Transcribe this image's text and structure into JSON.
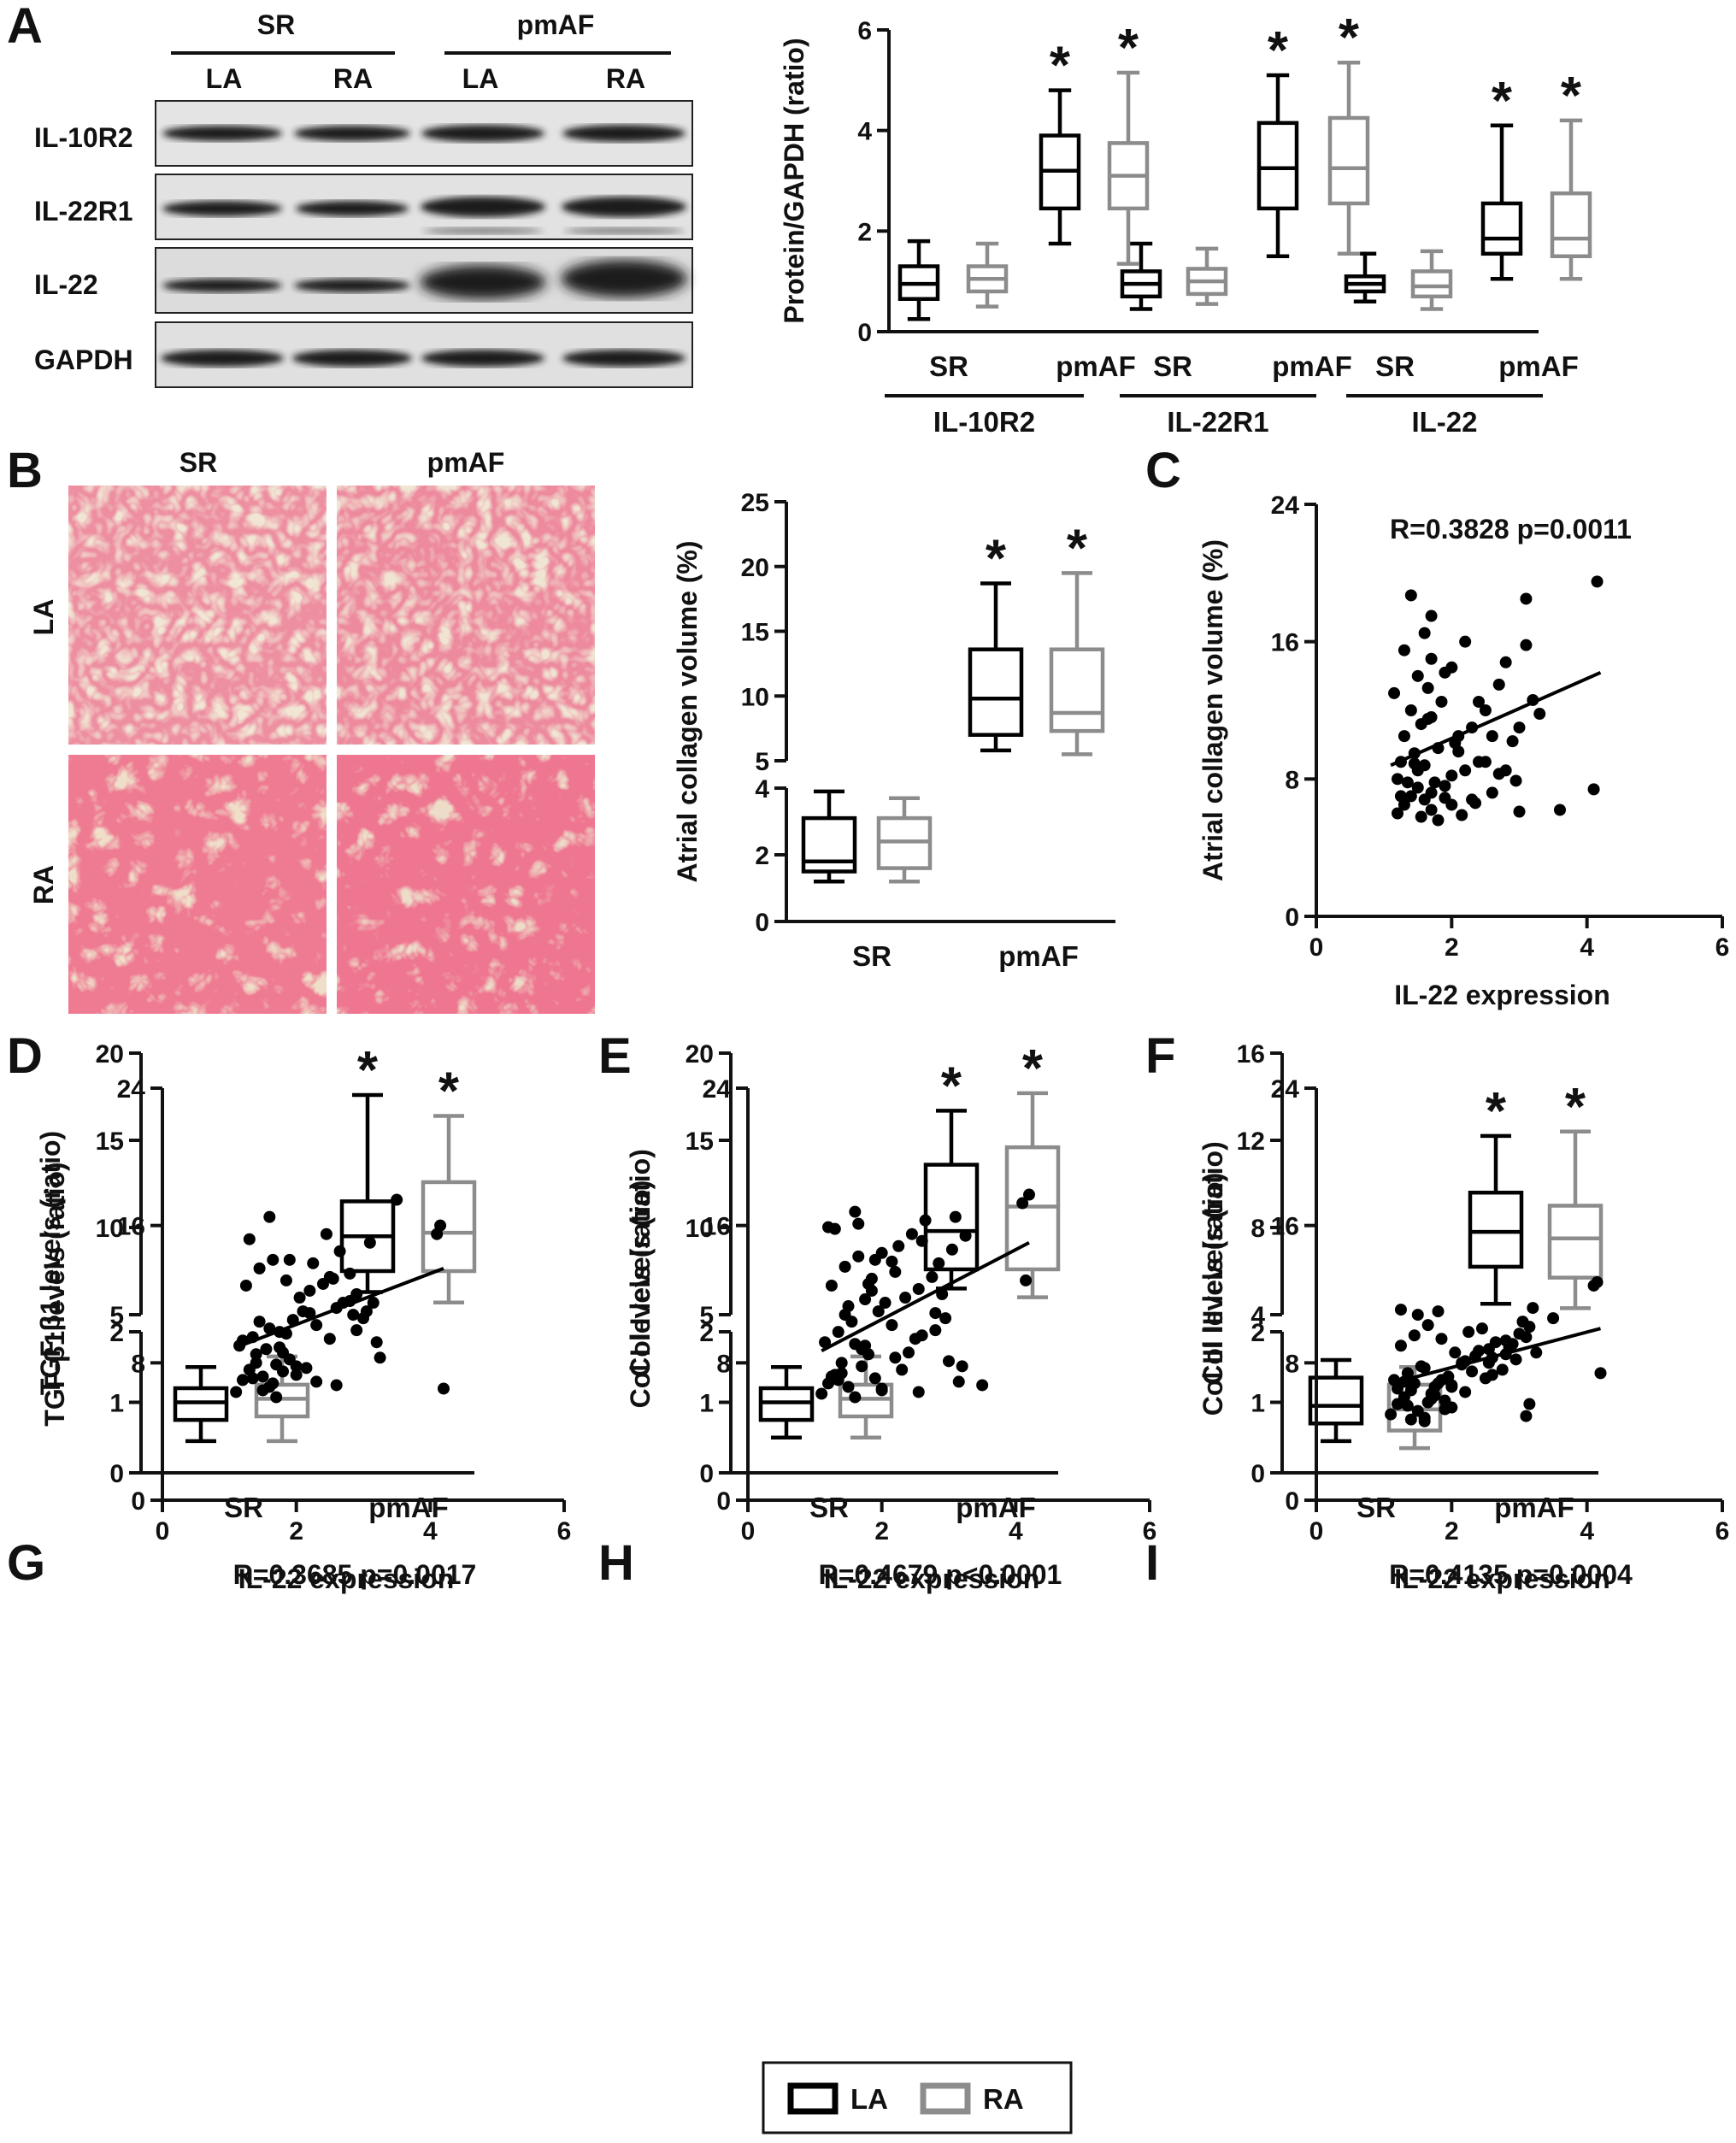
{
  "panel_letters": [
    "A",
    "B",
    "C",
    "D",
    "E",
    "F",
    "G",
    "H",
    "I"
  ],
  "colors": {
    "LA": "#000000",
    "RA": "#8c8c8c",
    "histology_bg": "#f1e6d4",
    "histology_stain": "#d83a52"
  },
  "legend": {
    "items": [
      {
        "label": "LA",
        "color": "#000000"
      },
      {
        "label": "RA",
        "color": "#8c8c8c"
      }
    ]
  },
  "blot": {
    "groups": [
      "SR",
      "pmAF"
    ],
    "lanes": [
      "LA",
      "RA",
      "LA",
      "RA"
    ],
    "rows": [
      "IL-10R2",
      "IL-22R1",
      "IL-22",
      "GAPDH"
    ]
  },
  "histology": {
    "columns": [
      "SR",
      "pmAF"
    ],
    "rows": [
      "LA",
      "RA"
    ]
  },
  "chart_data": [
    {
      "panel": "A",
      "type": "box",
      "ylabel": "Protein/GAPDH (ratio)",
      "ylim": [
        0,
        6
      ],
      "yticks": [
        "0",
        "2",
        "4",
        "6"
      ],
      "groups": [
        "IL-10R2",
        "IL-22R1",
        "IL-22"
      ],
      "categories": [
        "SR",
        "pmAF"
      ],
      "significance_marker": "*",
      "series": [
        {
          "name": "LA",
          "boxes": [
            [
              0.25,
              0.65,
              0.95,
              1.3,
              1.8
            ],
            [
              1.75,
              2.45,
              3.2,
              3.9,
              4.8
            ],
            [
              0.45,
              0.7,
              0.95,
              1.2,
              1.75
            ],
            [
              1.5,
              2.45,
              3.25,
              4.15,
              5.1
            ],
            [
              0.6,
              0.8,
              0.95,
              1.1,
              1.55
            ],
            [
              1.05,
              1.55,
              1.85,
              2.55,
              4.1
            ]
          ],
          "significant": [
            false,
            true,
            false,
            true,
            false,
            true
          ]
        },
        {
          "name": "RA",
          "boxes": [
            [
              0.5,
              0.8,
              1.05,
              1.3,
              1.75
            ],
            [
              1.35,
              2.45,
              3.1,
              3.75,
              5.15
            ],
            [
              0.55,
              0.75,
              1.0,
              1.25,
              1.65
            ],
            [
              1.55,
              2.55,
              3.25,
              4.25,
              5.35
            ],
            [
              0.45,
              0.7,
              0.9,
              1.2,
              1.6
            ],
            [
              1.05,
              1.5,
              1.85,
              2.75,
              4.2
            ]
          ],
          "significant": [
            false,
            true,
            false,
            true,
            false,
            true
          ]
        }
      ]
    },
    {
      "panel": "B",
      "type": "box",
      "ylabel": "Atrial collagen volume (%)",
      "y_broken_axis": {
        "lower": [
          0,
          4
        ],
        "upper": [
          5,
          25
        ]
      },
      "yticks_lower": [
        "0",
        "2",
        "4"
      ],
      "yticks_upper": [
        "5",
        "10",
        "15",
        "20",
        "25"
      ],
      "categories": [
        "SR",
        "pmAF"
      ],
      "significance_marker": "*",
      "series": [
        {
          "name": "LA",
          "boxes": [
            [
              1.2,
              1.5,
              1.8,
              3.1,
              3.9
            ],
            [
              5.8,
              7.0,
              9.8,
              13.6,
              18.7
            ]
          ],
          "significant": [
            false,
            true
          ]
        },
        {
          "name": "RA",
          "boxes": [
            [
              1.2,
              1.6,
              2.4,
              3.1,
              3.7
            ],
            [
              5.5,
              7.3,
              8.7,
              13.6,
              19.5
            ]
          ],
          "significant": [
            false,
            true
          ]
        }
      ]
    },
    {
      "panel": "C",
      "type": "scatter",
      "xlabel": "IL-22 expression",
      "ylabel": "Atrial collagen volume (%)",
      "annotation": "R=0.3828 p=0.0011",
      "xlim": [
        0,
        6
      ],
      "ylim": [
        0,
        24
      ],
      "xticks": [
        "0",
        "2",
        "4",
        "6"
      ],
      "yticks": [
        "0",
        "8",
        "16",
        "24"
      ],
      "fit": [
        [
          1.1,
          8.8
        ],
        [
          4.2,
          14.2
        ]
      ],
      "x": [
        1.2,
        1.3,
        1.4,
        1.5,
        1.6,
        1.7,
        1.8,
        1.2,
        1.35,
        1.5,
        1.7,
        1.9,
        1.25,
        1.45,
        1.6,
        1.75,
        2.0,
        1.3,
        1.55,
        1.8,
        2.2,
        1.4,
        1.65,
        2.1,
        2.4,
        1.15,
        1.5,
        1.85,
        2.3,
        2.6,
        2.8,
        1.3,
        1.6,
        2.0,
        2.5,
        3.0,
        1.7,
        2.2,
        2.7,
        3.1,
        1.9,
        2.4,
        2.9,
        3.3,
        2.0,
        2.6,
        3.0,
        3.1,
        1.4,
        1.7,
        2.1,
        2.5,
        3.6,
        4.1,
        4.15,
        1.7,
        2.3,
        2.8,
        1.25,
        1.55,
        1.9,
        2.7,
        3.2,
        1.45,
        2.05,
        2.35,
        2.95,
        1.65,
        2.15
      ],
      "y": [
        6.0,
        6.5,
        7.0,
        7.5,
        6.8,
        6.2,
        5.6,
        8.0,
        7.8,
        8.5,
        7.2,
        6.9,
        9.0,
        9.5,
        8.8,
        7.8,
        8.2,
        10.5,
        11.2,
        9.8,
        8.5,
        12.0,
        11.5,
        10.5,
        9.0,
        13.0,
        14.0,
        12.5,
        11.0,
        10.5,
        8.5,
        15.5,
        16.5,
        14.5,
        12.0,
        11.0,
        17.5,
        16.0,
        13.5,
        15.8,
        14.2,
        12.5,
        10.2,
        11.8,
        6.5,
        7.2,
        6.1,
        18.5,
        18.7,
        15.0,
        9.6,
        9.0,
        6.2,
        7.4,
        19.5,
        11.6,
        6.8,
        14.8,
        7.0,
        5.8,
        7.6,
        8.3,
        12.6,
        8.9,
        10.1,
        6.6,
        7.9,
        13.3,
        5.9
      ]
    },
    {
      "panel": "D",
      "type": "box",
      "ylabel": "TGF-β1 levels (ratio)",
      "y_broken_axis": {
        "lower": [
          0,
          2
        ],
        "upper": [
          5,
          20
        ]
      },
      "yticks_lower": [
        "0",
        "1",
        "2"
      ],
      "yticks_upper": [
        "5",
        "10",
        "15",
        "20"
      ],
      "categories": [
        "SR",
        "pmAF"
      ],
      "significance_marker": "*",
      "series": [
        {
          "name": "LA",
          "boxes": [
            [
              0.45,
              0.75,
              1.0,
              1.2,
              1.5
            ],
            [
              6.3,
              7.5,
              9.5,
              11.5,
              17.6
            ]
          ],
          "significant": [
            false,
            true
          ]
        },
        {
          "name": "RA",
          "boxes": [
            [
              0.45,
              0.8,
              1.05,
              1.25,
              1.65
            ],
            [
              5.7,
              7.5,
              9.7,
              12.6,
              16.4
            ]
          ],
          "significant": [
            false,
            true
          ]
        }
      ]
    },
    {
      "panel": "E",
      "type": "box",
      "ylabel": "Col I levels  (ratio)",
      "y_broken_axis": {
        "lower": [
          0,
          2
        ],
        "upper": [
          5,
          20
        ]
      },
      "yticks_lower": [
        "0",
        "1",
        "2"
      ],
      "yticks_upper": [
        "5",
        "10",
        "15",
        "20"
      ],
      "categories": [
        "SR",
        "pmAF"
      ],
      "significance_marker": "*",
      "series": [
        {
          "name": "LA",
          "boxes": [
            [
              0.5,
              0.75,
              1.0,
              1.2,
              1.5
            ],
            [
              6.5,
              7.6,
              9.8,
              13.6,
              16.7
            ]
          ],
          "significant": [
            false,
            true
          ]
        },
        {
          "name": "RA",
          "boxes": [
            [
              0.5,
              0.8,
              1.05,
              1.25,
              1.65
            ],
            [
              6.0,
              7.6,
              11.2,
              14.6,
              17.7
            ]
          ],
          "significant": [
            false,
            true
          ]
        }
      ]
    },
    {
      "panel": "F",
      "type": "box",
      "ylabel": "Col III levels (ratio)",
      "y_broken_axis": {
        "lower": [
          0,
          2
        ],
        "upper": [
          4,
          16
        ]
      },
      "yticks_lower": [
        "0",
        "1",
        "2"
      ],
      "yticks_upper": [
        "4",
        "8",
        "12",
        "16"
      ],
      "categories": [
        "SR",
        "pmAF"
      ],
      "significance_marker": "*",
      "series": [
        {
          "name": "LA",
          "boxes": [
            [
              0.45,
              0.7,
              0.95,
              1.35,
              1.6
            ],
            [
              4.5,
              6.2,
              7.8,
              9.6,
              12.2
            ]
          ],
          "significant": [
            false,
            true
          ]
        },
        {
          "name": "RA",
          "boxes": [
            [
              0.35,
              0.6,
              0.9,
              1.25,
              1.5
            ],
            [
              4.3,
              5.7,
              7.5,
              9.0,
              12.4
            ]
          ],
          "significant": [
            false,
            true
          ]
        }
      ]
    },
    {
      "panel": "G",
      "type": "scatter",
      "xlabel": "IL-22 expression",
      "ylabel": "TGF-β1 levels (ratio)",
      "annotation": "R=0.3685 p=0.0017",
      "xlim": [
        0,
        6
      ],
      "ylim": [
        0,
        24
      ],
      "xticks": [
        "0",
        "2",
        "4",
        "6"
      ],
      "yticks": [
        "0",
        "8",
        "16",
        "24"
      ],
      "fit": [
        [
          1.1,
          8.9
        ],
        [
          4.2,
          13.5
        ]
      ],
      "x": [
        1.1,
        1.2,
        1.3,
        1.4,
        1.5,
        1.6,
        1.7,
        1.8,
        1.9,
        2.0,
        1.15,
        1.35,
        1.55,
        1.75,
        1.95,
        2.1,
        2.3,
        2.5,
        2.7,
        2.9,
        1.25,
        1.45,
        1.65,
        1.85,
        2.05,
        2.25,
        2.45,
        2.65,
        2.85,
        3.05,
        3.2,
        1.3,
        1.6,
        1.9,
        2.2,
        2.5,
        2.8,
        3.1,
        1.4,
        1.7,
        2.0,
        2.3,
        2.6,
        2.9,
        3.15,
        1.5,
        1.8,
        2.2,
        2.6,
        3.0,
        3.5,
        4.1,
        4.15,
        4.2,
        1.2,
        1.6,
        2.4,
        2.8,
        1.35,
        1.75,
        2.15,
        2.55,
        3.25,
        1.45,
        1.85,
        1.65
      ],
      "y": [
        6.3,
        7.0,
        7.6,
        8.0,
        7.2,
        6.6,
        6.0,
        7.5,
        8.2,
        7.8,
        9.0,
        9.5,
        8.8,
        9.8,
        10.5,
        11.0,
        10.2,
        9.4,
        11.5,
        12.0,
        12.5,
        13.5,
        14.0,
        12.8,
        11.8,
        13.8,
        15.5,
        14.5,
        10.8,
        11.0,
        9.2,
        15.2,
        16.5,
        14.0,
        12.2,
        13.0,
        11.6,
        15.0,
        8.5,
        7.9,
        7.3,
        6.9,
        6.7,
        9.9,
        11.5,
        6.4,
        8.6,
        10.9,
        11.2,
        10.6,
        17.5,
        15.5,
        16.0,
        6.5,
        9.3,
        10.0,
        12.6,
        13.2,
        7.1,
        8.9,
        7.7,
        12.9,
        8.3,
        10.4,
        9.7,
        6.8
      ]
    },
    {
      "panel": "H",
      "type": "scatter",
      "xlabel": "IL-22 expression",
      "ylabel": "Col I levels (ratio)",
      "annotation": "R=0.4679 p<0.0001",
      "xlim": [
        0,
        6
      ],
      "ylim": [
        0,
        24
      ],
      "xticks": [
        "0",
        "2",
        "4",
        "6"
      ],
      "yticks": [
        "0",
        "8",
        "16",
        "24"
      ],
      "fit": [
        [
          1.1,
          8.7
        ],
        [
          4.2,
          15.0
        ]
      ],
      "x": [
        1.1,
        1.2,
        1.3,
        1.4,
        1.5,
        1.6,
        1.7,
        1.8,
        1.9,
        2.0,
        1.15,
        1.35,
        1.55,
        1.75,
        1.95,
        2.15,
        2.35,
        2.55,
        2.75,
        2.95,
        1.25,
        1.45,
        1.65,
        1.85,
        2.05,
        2.25,
        2.45,
        2.65,
        2.85,
        3.05,
        3.2,
        1.3,
        1.6,
        1.9,
        2.2,
        2.5,
        2.8,
        3.1,
        1.4,
        1.7,
        2.0,
        2.3,
        2.6,
        2.9,
        3.15,
        1.5,
        1.8,
        2.2,
        2.6,
        3.0,
        3.5,
        4.1,
        4.15,
        4.2,
        1.2,
        1.6,
        2.4,
        2.8,
        1.35,
        1.75,
        2.15,
        2.55,
        3.25,
        1.45,
        1.85,
        1.65,
        1.25,
        2.0
      ],
      "y": [
        6.2,
        6.8,
        7.3,
        8.0,
        6.6,
        6.0,
        7.8,
        8.5,
        7.1,
        6.5,
        9.2,
        9.8,
        10.4,
        9.0,
        11.0,
        10.2,
        11.8,
        12.3,
        13.0,
        10.6,
        12.5,
        13.6,
        14.2,
        12.9,
        11.5,
        14.8,
        15.5,
        16.3,
        13.8,
        14.6,
        7.8,
        15.8,
        16.8,
        14.0,
        8.3,
        9.4,
        10.9,
        16.5,
        7.4,
        8.8,
        6.4,
        7.6,
        9.6,
        12.0,
        6.9,
        11.3,
        12.6,
        13.3,
        15.1,
        8.1,
        6.7,
        17.3,
        12.8,
        17.8,
        15.9,
        9.1,
        8.6,
        9.9,
        7.0,
        11.7,
        13.9,
        6.3,
        15.4,
        10.8,
        12.2,
        16.1,
        7.2,
        14.4
      ]
    },
    {
      "panel": "I",
      "type": "scatter",
      "xlabel": "IL-22 expression",
      "ylabel": "Col III levels (ratio)",
      "annotation": "R=0.4135 p=0.0004",
      "xlim": [
        0,
        6
      ],
      "ylim": [
        0,
        24
      ],
      "xticks": [
        "0",
        "2",
        "4",
        "6"
      ],
      "yticks": [
        "0",
        "8",
        "16",
        "24"
      ],
      "fit": [
        [
          1.1,
          6.8
        ],
        [
          4.2,
          10.0
        ]
      ],
      "x": [
        1.1,
        1.2,
        1.3,
        1.4,
        1.5,
        1.6,
        1.7,
        1.8,
        1.9,
        2.0,
        1.15,
        1.35,
        1.55,
        1.75,
        1.95,
        2.15,
        2.35,
        2.55,
        2.75,
        2.95,
        1.25,
        1.45,
        1.65,
        1.85,
        2.05,
        2.25,
        2.45,
        2.65,
        2.85,
        3.05,
        3.2,
        1.3,
        1.6,
        1.9,
        2.2,
        2.5,
        2.8,
        3.1,
        1.4,
        1.7,
        2.0,
        2.3,
        2.6,
        2.9,
        3.15,
        1.5,
        1.8,
        2.2,
        2.6,
        3.0,
        3.5,
        4.1,
        4.15,
        4.2,
        1.2,
        1.6,
        2.4,
        2.8,
        1.35,
        1.75,
        2.15,
        2.55,
        3.25,
        1.45,
        1.85,
        1.65,
        1.25,
        2.0,
        3.1,
        3.15
      ],
      "y": [
        5.0,
        5.6,
        6.0,
        6.4,
        5.2,
        4.8,
        6.2,
        6.8,
        5.8,
        5.4,
        7.0,
        7.4,
        7.8,
        6.6,
        7.2,
        8.0,
        8.4,
        8.8,
        7.6,
        8.2,
        9.0,
        9.6,
        10.2,
        9.4,
        8.6,
        9.8,
        10.0,
        9.2,
        8.9,
        10.4,
        11.2,
        6.9,
        7.7,
        5.3,
        6.3,
        7.1,
        8.5,
        9.5,
        4.7,
        5.9,
        6.7,
        7.5,
        8.3,
        9.1,
        10.1,
        10.8,
        11.0,
        8.1,
        7.3,
        9.7,
        10.6,
        12.5,
        12.7,
        7.4,
        6.5,
        4.6,
        8.7,
        9.3,
        5.5,
        6.1,
        7.9,
        8.0,
        8.6,
        6.8,
        7.0,
        5.7,
        11.1,
        6.6,
        4.9,
        5.6
      ]
    }
  ]
}
